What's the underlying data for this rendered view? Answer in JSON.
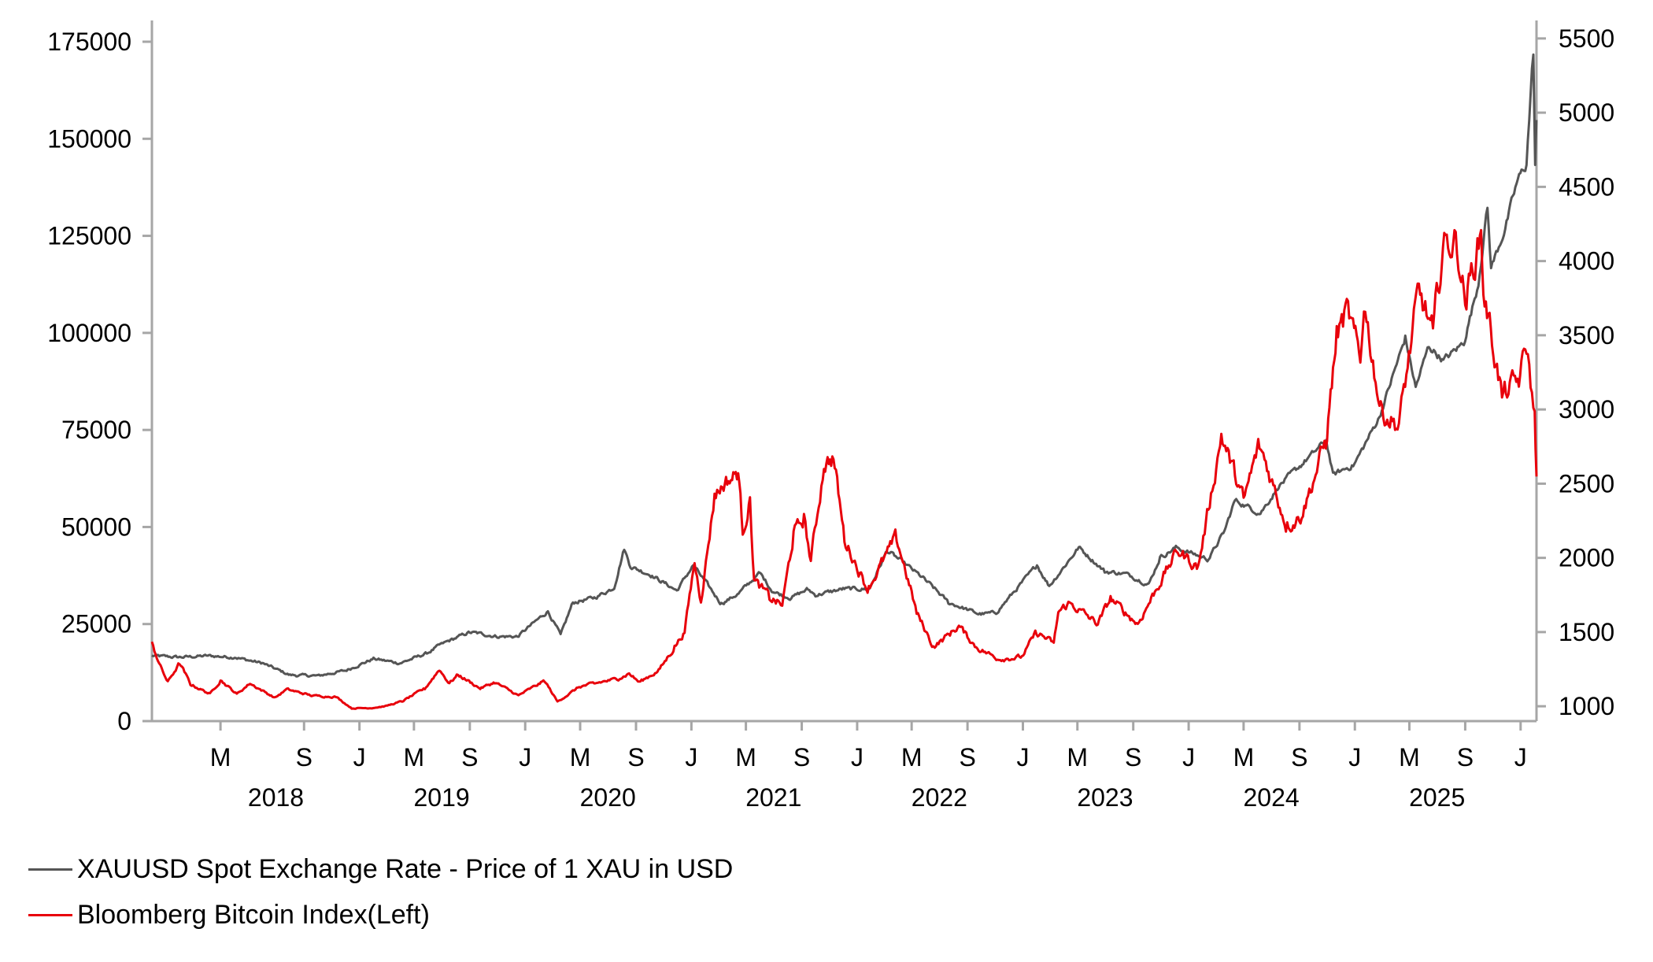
{
  "chart_data": {
    "type": "line",
    "title": "",
    "x_range": [
      "2017-10-01",
      "2026-02-05"
    ],
    "left_axis": {
      "ylim": [
        0,
        175000
      ],
      "ticks": [
        0,
        25000,
        50000,
        75000,
        100000,
        125000,
        150000,
        175000
      ],
      "tick_labels": [
        "0",
        "25000",
        "50000",
        "75000",
        "100000",
        "125000",
        "150000",
        "175000"
      ]
    },
    "right_axis": {
      "ylim": [
        900,
        5600
      ],
      "ticks": [
        1000,
        1500,
        2000,
        2500,
        3000,
        3500,
        4000,
        4500,
        5000,
        5500
      ],
      "tick_labels": [
        "1000",
        "1500",
        "2000",
        "2500",
        "3000",
        "3500",
        "4000",
        "4500",
        "5000",
        "5500"
      ]
    },
    "x_month_ticks": [
      {
        "date": "2018-03-01",
        "label": "M"
      },
      {
        "date": "2018-09-01",
        "label": "S"
      },
      {
        "date": "2019-01-01",
        "label": "J"
      },
      {
        "date": "2019-05-01",
        "label": "M"
      },
      {
        "date": "2019-09-01",
        "label": "S"
      },
      {
        "date": "2020-01-01",
        "label": "J"
      },
      {
        "date": "2020-05-01",
        "label": "M"
      },
      {
        "date": "2020-09-01",
        "label": "S"
      },
      {
        "date": "2021-01-01",
        "label": "J"
      },
      {
        "date": "2021-05-01",
        "label": "M"
      },
      {
        "date": "2021-09-01",
        "label": "S"
      },
      {
        "date": "2022-01-01",
        "label": "J"
      },
      {
        "date": "2022-05-01",
        "label": "M"
      },
      {
        "date": "2022-09-01",
        "label": "S"
      },
      {
        "date": "2023-01-01",
        "label": "J"
      },
      {
        "date": "2023-05-01",
        "label": "M"
      },
      {
        "date": "2023-09-01",
        "label": "S"
      },
      {
        "date": "2024-01-01",
        "label": "J"
      },
      {
        "date": "2024-05-01",
        "label": "M"
      },
      {
        "date": "2024-09-01",
        "label": "S"
      },
      {
        "date": "2025-01-01",
        "label": "J"
      },
      {
        "date": "2025-05-01",
        "label": "M"
      },
      {
        "date": "2025-09-01",
        "label": "S"
      },
      {
        "date": "2026-01-01",
        "label": "J"
      }
    ],
    "x_year_labels": [
      {
        "date": "2018-07-01",
        "label": "2018"
      },
      {
        "date": "2019-07-01",
        "label": "2019"
      },
      {
        "date": "2020-07-01",
        "label": "2020"
      },
      {
        "date": "2021-07-01",
        "label": "2021"
      },
      {
        "date": "2022-07-01",
        "label": "2022"
      },
      {
        "date": "2023-07-01",
        "label": "2023"
      },
      {
        "date": "2024-07-01",
        "label": "2024"
      },
      {
        "date": "2025-07-01",
        "label": "2025"
      }
    ],
    "series": [
      {
        "name": "XAUUSD Spot Exchange Rate - Price of 1 XAU in USD",
        "axis": "right",
        "color": "#555555",
        "points": [
          [
            "2017-10-01",
            1340
          ],
          [
            "2017-12-01",
            1330
          ],
          [
            "2018-02-01",
            1340
          ],
          [
            "2018-04-01",
            1330
          ],
          [
            "2018-06-01",
            1290
          ],
          [
            "2018-08-01",
            1210
          ],
          [
            "2018-10-01",
            1205
          ],
          [
            "2018-12-01",
            1240
          ],
          [
            "2019-02-01",
            1320
          ],
          [
            "2019-04-01",
            1290
          ],
          [
            "2019-06-01",
            1360
          ],
          [
            "2019-07-01",
            1420
          ],
          [
            "2019-09-01",
            1500
          ],
          [
            "2019-11-01",
            1470
          ],
          [
            "2019-12-15",
            1470
          ],
          [
            "2020-01-15",
            1550
          ],
          [
            "2020-02-20",
            1640
          ],
          [
            "2020-03-19",
            1480
          ],
          [
            "2020-04-15",
            1700
          ],
          [
            "2020-06-01",
            1730
          ],
          [
            "2020-07-15",
            1800
          ],
          [
            "2020-08-06",
            2065
          ],
          [
            "2020-08-20",
            1940
          ],
          [
            "2020-10-01",
            1890
          ],
          [
            "2020-11-30",
            1780
          ],
          [
            "2021-01-05",
            1950
          ],
          [
            "2021-03-08",
            1690
          ],
          [
            "2021-04-15",
            1760
          ],
          [
            "2021-06-01",
            1900
          ],
          [
            "2021-06-30",
            1770
          ],
          [
            "2021-08-09",
            1730
          ],
          [
            "2021-09-15",
            1790
          ],
          [
            "2021-10-01",
            1750
          ],
          [
            "2021-12-01",
            1790
          ],
          [
            "2022-01-28",
            1790
          ],
          [
            "2022-03-08",
            2050
          ],
          [
            "2022-04-20",
            1950
          ],
          [
            "2022-06-01",
            1850
          ],
          [
            "2022-07-21",
            1700
          ],
          [
            "2022-09-28",
            1620
          ],
          [
            "2022-11-03",
            1630
          ],
          [
            "2022-12-15",
            1780
          ],
          [
            "2023-02-01",
            1950
          ],
          [
            "2023-02-28",
            1810
          ],
          [
            "2023-05-04",
            2070
          ],
          [
            "2023-06-30",
            1910
          ],
          [
            "2023-08-20",
            1890
          ],
          [
            "2023-10-05",
            1820
          ],
          [
            "2023-10-30",
            2000
          ],
          [
            "2023-12-04",
            2070
          ],
          [
            "2024-02-14",
            1990
          ],
          [
            "2024-03-20",
            2180
          ],
          [
            "2024-04-12",
            2390
          ],
          [
            "2024-06-07",
            2300
          ],
          [
            "2024-07-17",
            2480
          ],
          [
            "2024-09-26",
            2690
          ],
          [
            "2024-10-30",
            2790
          ],
          [
            "2024-11-14",
            2560
          ],
          [
            "2024-12-31",
            2630
          ],
          [
            "2025-02-24",
            2950
          ],
          [
            "2025-04-22",
            3480
          ],
          [
            "2025-05-15",
            3150
          ],
          [
            "2025-06-13",
            3430
          ],
          [
            "2025-07-15",
            3330
          ],
          [
            "2025-08-29",
            3450
          ],
          [
            "2025-09-30",
            3850
          ],
          [
            "2025-10-20",
            4370
          ],
          [
            "2025-10-28",
            3950
          ],
          [
            "2025-12-01",
            4250
          ],
          [
            "2025-12-26",
            4550
          ],
          [
            "2026-01-14",
            4650
          ],
          [
            "2026-01-29",
            5420
          ],
          [
            "2026-02-02",
            4650
          ],
          [
            "2026-02-05",
            4950
          ]
        ]
      },
      {
        "name": "Bloomberg Bitcoin Index(Left)",
        "axis": "left",
        "color": "#e8000b",
        "points": [
          [
            "2017-10-01",
            20000
          ],
          [
            "2017-10-20",
            14000
          ],
          [
            "2017-11-05",
            10000
          ],
          [
            "2017-12-01",
            15000
          ],
          [
            "2017-12-25",
            9500
          ],
          [
            "2018-02-06",
            7000
          ],
          [
            "2018-03-01",
            10500
          ],
          [
            "2018-04-06",
            7000
          ],
          [
            "2018-05-05",
            9700
          ],
          [
            "2018-06-29",
            6000
          ],
          [
            "2018-07-25",
            8200
          ],
          [
            "2018-09-20",
            6500
          ],
          [
            "2018-11-10",
            6300
          ],
          [
            "2018-12-15",
            3300
          ],
          [
            "2019-01-31",
            3400
          ],
          [
            "2019-03-01",
            3900
          ],
          [
            "2019-04-05",
            5100
          ],
          [
            "2019-05-25",
            8400
          ],
          [
            "2019-06-26",
            13300
          ],
          [
            "2019-07-18",
            9700
          ],
          [
            "2019-08-06",
            12000
          ],
          [
            "2019-09-24",
            8400
          ],
          [
            "2019-10-26",
            10000
          ],
          [
            "2019-12-17",
            6600
          ],
          [
            "2020-02-13",
            10400
          ],
          [
            "2020-03-12",
            5000
          ],
          [
            "2020-04-29",
            8800
          ],
          [
            "2020-06-01",
            9700
          ],
          [
            "2020-07-27",
            11000
          ],
          [
            "2020-08-17",
            12300
          ],
          [
            "2020-09-08",
            10000
          ],
          [
            "2020-10-21",
            13000
          ],
          [
            "2020-11-25",
            19000
          ],
          [
            "2020-12-17",
            23000
          ],
          [
            "2021-01-08",
            41000
          ],
          [
            "2021-01-22",
            31000
          ],
          [
            "2021-02-21",
            58000
          ],
          [
            "2021-03-13",
            61000
          ],
          [
            "2021-04-14",
            64000
          ],
          [
            "2021-04-24",
            49000
          ],
          [
            "2021-05-10",
            57000
          ],
          [
            "2021-05-19",
            36000
          ],
          [
            "2021-06-22",
            32000
          ],
          [
            "2021-07-20",
            29800
          ],
          [
            "2021-08-14",
            48000
          ],
          [
            "2021-09-06",
            52000
          ],
          [
            "2021-09-21",
            41000
          ],
          [
            "2021-10-20",
            66000
          ],
          [
            "2021-11-10",
            68000
          ],
          [
            "2021-12-04",
            47000
          ],
          [
            "2022-01-24",
            34000
          ],
          [
            "2022-03-29",
            47500
          ],
          [
            "2022-05-12",
            28000
          ],
          [
            "2022-06-18",
            19000
          ],
          [
            "2022-08-13",
            24500
          ],
          [
            "2022-09-20",
            19000
          ],
          [
            "2022-11-09",
            16000
          ],
          [
            "2022-12-30",
            16500
          ],
          [
            "2023-01-31",
            23000
          ],
          [
            "2023-03-10",
            20000
          ],
          [
            "2023-03-20",
            28000
          ],
          [
            "2023-04-14",
            30500
          ],
          [
            "2023-06-15",
            25000
          ],
          [
            "2023-07-13",
            31500
          ],
          [
            "2023-09-11",
            25000
          ],
          [
            "2023-10-24",
            34500
          ],
          [
            "2023-12-08",
            44000
          ],
          [
            "2024-01-22",
            39500
          ],
          [
            "2024-03-13",
            73500
          ],
          [
            "2024-05-01",
            57000
          ],
          [
            "2024-06-05",
            71500
          ],
          [
            "2024-08-05",
            50000
          ],
          [
            "2024-09-06",
            53000
          ],
          [
            "2024-10-29",
            72000
          ],
          [
            "2024-11-22",
            99000
          ],
          [
            "2024-12-17",
            106000
          ],
          [
            "2025-01-13",
            92000
          ],
          [
            "2025-01-21",
            108000
          ],
          [
            "2025-02-27",
            80000
          ],
          [
            "2025-04-08",
            76000
          ],
          [
            "2025-05-22",
            111000
          ],
          [
            "2025-06-22",
            100000
          ],
          [
            "2025-07-14",
            122000
          ],
          [
            "2025-08-14",
            124000
          ],
          [
            "2025-09-01",
            108000
          ],
          [
            "2025-10-06",
            126000
          ],
          [
            "2025-10-11",
            111000
          ],
          [
            "2025-11-21",
            84000
          ],
          [
            "2025-12-31",
            88000
          ],
          [
            "2026-01-14",
            97000
          ],
          [
            "2026-02-01",
            78000
          ],
          [
            "2026-02-05",
            63000
          ]
        ]
      }
    ],
    "legend_placement": "bottom-left",
    "grid": false
  }
}
